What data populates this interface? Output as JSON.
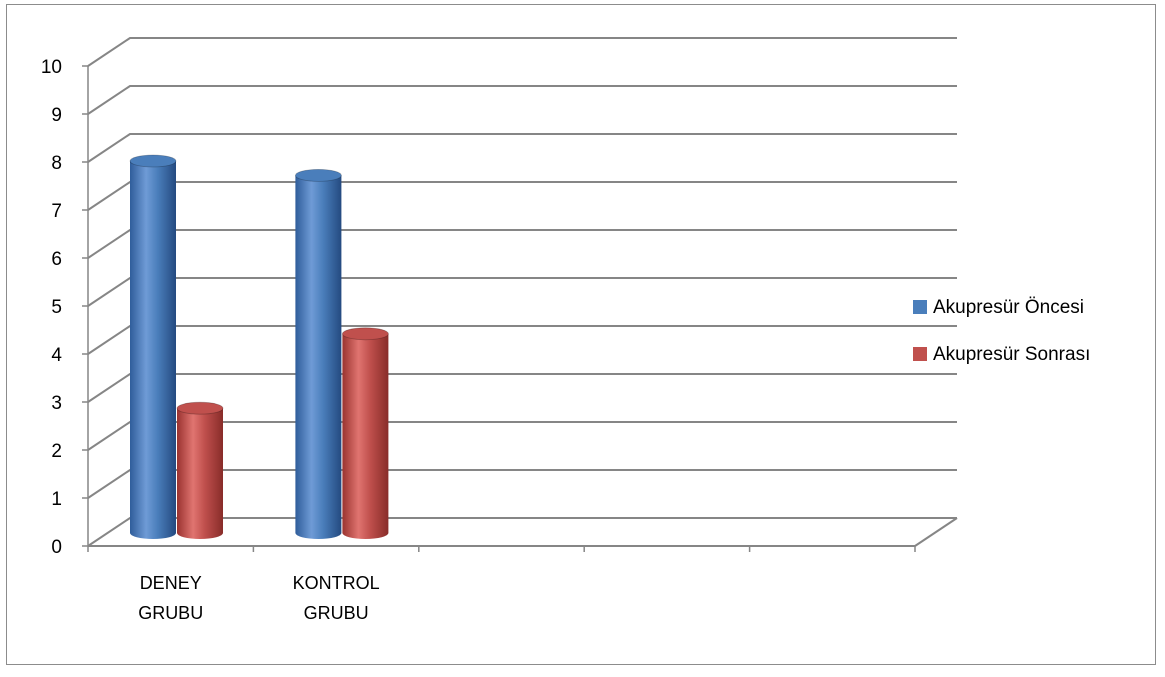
{
  "chart_data": {
    "type": "bar",
    "categories": [
      [
        "DENEY",
        "GRUBU"
      ],
      [
        "KONTROL",
        "GRUBU"
      ],
      [
        ""
      ],
      [
        ""
      ],
      [
        ""
      ]
    ],
    "series": [
      {
        "name": "Akupresür Öncesi",
        "values": [
          7.75,
          7.45,
          null,
          null,
          null
        ],
        "color": "#4a7ebb"
      },
      {
        "name": "Akupresür Sonrası",
        "values": [
          2.6,
          4.15,
          null,
          null,
          null
        ],
        "color": "#c0504d"
      }
    ],
    "ylim": [
      0,
      10
    ],
    "yticks": [
      0,
      1,
      2,
      3,
      4,
      5,
      6,
      7,
      8,
      9,
      10
    ],
    "grid": true,
    "legend_position": "right",
    "style": "3d-cylinder"
  }
}
